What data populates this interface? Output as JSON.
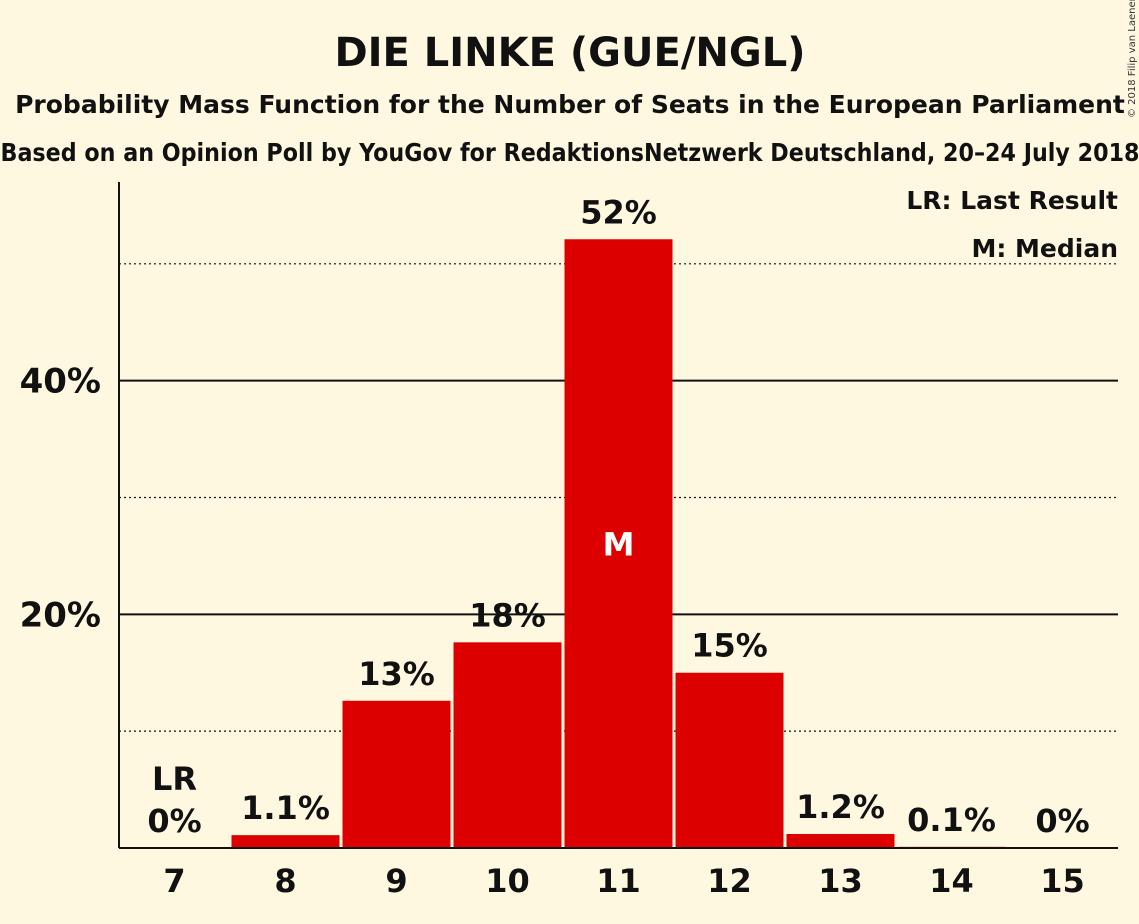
{
  "header": {
    "title": "DIE LINKE (GUE/NGL)",
    "subtitle": "Probability Mass Function for the Number of Seats in the European Parliament",
    "source": "Based on an Opinion Poll by YouGov for RedaktionsNetzwerk Deutschland, 20–24 July 2018",
    "copyright": "© 2018 Filip van Laenen"
  },
  "legend": {
    "last_result": "LR: Last Result",
    "median": "M: Median",
    "placement": "top-right"
  },
  "colors": {
    "background": "#fff8e1",
    "bar": "#dd0000",
    "text": "#111111"
  },
  "chart_data": {
    "type": "bar",
    "title": "DIE LINKE (GUE/NGL)",
    "categories": [
      "7",
      "8",
      "9",
      "10",
      "11",
      "12",
      "13",
      "14",
      "15"
    ],
    "values": [
      0,
      1.1,
      12.6,
      17.6,
      52.1,
      15.0,
      1.2,
      0.1,
      0
    ],
    "value_labels": [
      "0%",
      "1.1%",
      "13%",
      "18%",
      "52%",
      "15%",
      "1.2%",
      "0.1%",
      "0%"
    ],
    "ytick_values": [
      20,
      40
    ],
    "ytick_labels": [
      "20%",
      "40%"
    ],
    "dotted_gridlines": [
      10,
      30,
      50
    ],
    "ylim": [
      0,
      57
    ],
    "median_category": "11",
    "median_marker": "M",
    "last_result_category": "7",
    "last_result_marker": "LR",
    "unit": "%"
  }
}
